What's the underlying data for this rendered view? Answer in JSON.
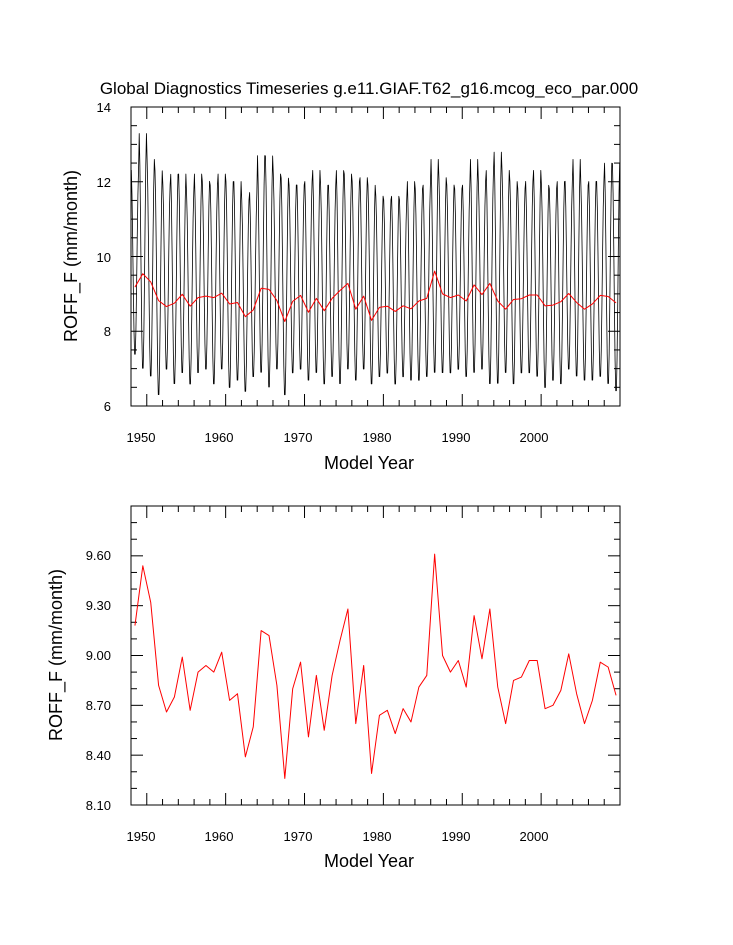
{
  "chart_data": [
    {
      "type": "line",
      "title": "Global Diagnostics Timeseries g.e11.GIAF.T62_g16.mcog_eco_par.000",
      "xlabel": "Model Year",
      "ylabel": "ROFF_F (mm/month)",
      "xlim": [
        1948,
        2010
      ],
      "ylim": [
        6,
        14
      ],
      "xticks": [
        "1950",
        "1960",
        "1970",
        "1980",
        "1990",
        "2000"
      ],
      "yticks": [
        "6",
        "8",
        "10",
        "12",
        "14"
      ],
      "grid": false,
      "legend": "none",
      "series": [
        {
          "color": "#000000",
          "description_values": "monthly",
          "annual_max": [
            12.4,
            13.4,
            12.7,
            12.4,
            12.0,
            12.3,
            12.3,
            11.8,
            12.3,
            12.1,
            12.0,
            12.3,
            12.1,
            12.1,
            11.6,
            11.8,
            12.8,
            12.8,
            12.3,
            12.2,
            12.0,
            12.0,
            12.1,
            12.4,
            12.0,
            12.0,
            12.4,
            12.3,
            12.1,
            12.2,
            12.0,
            11.7,
            11.6,
            11.7,
            11.6,
            12.1,
            11.9,
            12.0,
            12.7,
            12.2,
            12.0,
            11.9,
            12.0,
            12.7,
            12.1,
            12.4,
            12.9,
            12.4,
            12.1,
            11.9,
            12.1,
            12.4,
            12.0,
            11.9,
            12.1,
            12.1,
            12.7,
            12.0,
            12.1,
            12.1,
            12.6,
            12.6
          ],
          "annual_min": [
            7.3,
            6.9,
            6.7,
            6.2,
            6.9,
            6.5,
            6.8,
            6.5,
            6.8,
            6.9,
            6.5,
            6.9,
            6.4,
            6.6,
            6.3,
            6.7,
            6.8,
            6.4,
            6.9,
            6.2,
            6.8,
            6.9,
            6.6,
            6.8,
            6.5,
            6.7,
            6.5,
            6.9,
            6.6,
            6.9,
            6.5,
            6.7,
            6.8,
            6.5,
            6.7,
            6.6,
            6.6,
            6.7,
            6.8,
            6.8,
            6.8,
            6.9,
            6.7,
            6.8,
            6.9,
            6.5,
            6.5,
            6.8,
            6.5,
            6.8,
            6.8,
            6.7,
            6.4,
            6.6,
            6.5,
            6.9,
            6.7,
            6.6,
            6.6,
            6.7,
            6.5,
            6.3
          ]
        },
        {
          "color": "#ff0000",
          "values": [
            9.18,
            9.54,
            9.32,
            8.82,
            8.66,
            8.75,
            8.99,
            8.67,
            8.9,
            8.94,
            8.9,
            9.02,
            8.73,
            8.77,
            8.39,
            8.57,
            9.15,
            9.12,
            8.82,
            8.26,
            8.8,
            8.96,
            8.51,
            8.88,
            8.55,
            8.88,
            9.09,
            9.28,
            8.59,
            8.94,
            8.29,
            8.64,
            8.67,
            8.53,
            8.68,
            8.6,
            8.81,
            8.88,
            9.61,
            9.0,
            8.9,
            8.97,
            8.81,
            9.24,
            8.98,
            9.28,
            8.81,
            8.59,
            8.85,
            8.87,
            8.97,
            8.97,
            8.68,
            8.7,
            8.79,
            9.01,
            8.77,
            8.59,
            8.73,
            8.96,
            8.93,
            8.76
          ]
        }
      ]
    },
    {
      "type": "line",
      "title": "",
      "xlabel": "Model Year",
      "ylabel": "ROFF_F (mm/month)",
      "xlim": [
        1948,
        2010
      ],
      "ylim": [
        8.1,
        9.9
      ],
      "xticks": [
        "1950",
        "1960",
        "1970",
        "1980",
        "1990",
        "2000"
      ],
      "yticks": [
        "8.10",
        "8.40",
        "8.70",
        "9.00",
        "9.30",
        "9.60"
      ],
      "grid": false,
      "legend": "none",
      "series": [
        {
          "color": "#ff0000",
          "values": [
            9.18,
            9.54,
            9.32,
            8.82,
            8.66,
            8.75,
            8.99,
            8.67,
            8.9,
            8.94,
            8.9,
            9.02,
            8.73,
            8.77,
            8.39,
            8.57,
            9.15,
            9.12,
            8.82,
            8.26,
            8.8,
            8.96,
            8.51,
            8.88,
            8.55,
            8.88,
            9.09,
            9.28,
            8.59,
            8.94,
            8.29,
            8.64,
            8.67,
            8.53,
            8.68,
            8.6,
            8.81,
            8.88,
            9.61,
            9.0,
            8.9,
            8.97,
            8.81,
            9.24,
            8.98,
            9.28,
            8.81,
            8.59,
            8.85,
            8.87,
            8.97,
            8.97,
            8.68,
            8.7,
            8.79,
            9.01,
            8.77,
            8.59,
            8.73,
            8.96,
            8.93,
            8.76
          ]
        }
      ]
    }
  ]
}
